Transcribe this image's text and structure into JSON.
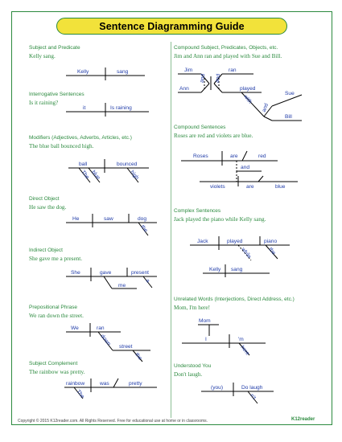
{
  "title": "Sentence Diagramming Guide",
  "sections": {
    "subject_predicate": {
      "heading": "Subject and Predicate",
      "sentence": "Kelly sang.",
      "words": {
        "subject": "Kelly",
        "verb": "sang"
      }
    },
    "interrogative": {
      "heading": "Interrogative Sentences",
      "sentence": "Is it raining?",
      "words": {
        "subject": "it",
        "verb": "Is raining"
      }
    },
    "modifiers": {
      "heading": "Modifiers (Adjectives, Adverbs, Articles, etc.)",
      "sentence": "The blue ball bounced high.",
      "words": {
        "subject": "ball",
        "verb": "bounced",
        "article": "The",
        "adjective": "blue",
        "adverb": "high"
      }
    },
    "direct_object": {
      "heading": "Direct Object",
      "sentence": "He saw the dog.",
      "words": {
        "subject": "He",
        "verb": "saw",
        "object": "dog",
        "article": "the"
      }
    },
    "indirect_object": {
      "heading": "Indirect Object",
      "sentence": "She gave me a present.",
      "words": {
        "subject": "She",
        "verb": "gave",
        "object": "present",
        "indirect": "me",
        "article": "a"
      }
    },
    "prepositional": {
      "heading": "Prepositional Phrase",
      "sentence": "We ran down the street.",
      "words": {
        "subject": "We",
        "verb": "ran",
        "preposition": "down",
        "object": "street",
        "article": "the"
      }
    },
    "subject_complement": {
      "heading": "Subject Complement",
      "sentence": "The rainbow was pretty.",
      "words": {
        "subject": "rainbow",
        "verb": "was",
        "complement": "pretty",
        "article": "The"
      }
    },
    "compound": {
      "heading": "Compound Subject, Predicates, Objects, etc.",
      "sentence": "Jim and Ann ran and played with Sue and Bill.",
      "words": {
        "s1": "Jim",
        "s2": "Ann",
        "v1": "ran",
        "v2": "played",
        "c1": "and",
        "c2": "and",
        "c3": "and",
        "prep": "with",
        "o1": "Sue",
        "o2": "Bill"
      }
    },
    "compound_sentences": {
      "heading": "Compound Sentences",
      "sentence": "Roses are red and violets are blue.",
      "words": {
        "s1": "Roses",
        "v1": "are",
        "c1": "red",
        "conj": "and",
        "s2": "violets",
        "v2": "are",
        "c2": "blue"
      }
    },
    "complex": {
      "heading": "Complex Sentences",
      "sentence": "Jack played the piano while Kelly sang.",
      "words": {
        "subject": "Jack",
        "verb": "played",
        "object": "piano",
        "article": "the",
        "conj": "while",
        "s2": "Kelly",
        "v2": "sang"
      }
    },
    "unrelated": {
      "heading": "Unrelated Words (Interjections, Direct Address, etc.)",
      "sentence": "Mom, I'm here!",
      "words": {
        "address": "Mom",
        "subject": "I",
        "verb": "'m",
        "adverb": "here"
      }
    },
    "understood": {
      "heading": "Understood You",
      "sentence": "Don't laugh.",
      "words": {
        "subject": "(you)",
        "verb": "Do laugh",
        "adverb": "n't"
      }
    }
  },
  "footer": {
    "copyright": "Copyright © 2015  K12reader.com. All Rights Reserved. Free for educational use at home or in classrooms.",
    "brand": "K12reader"
  }
}
